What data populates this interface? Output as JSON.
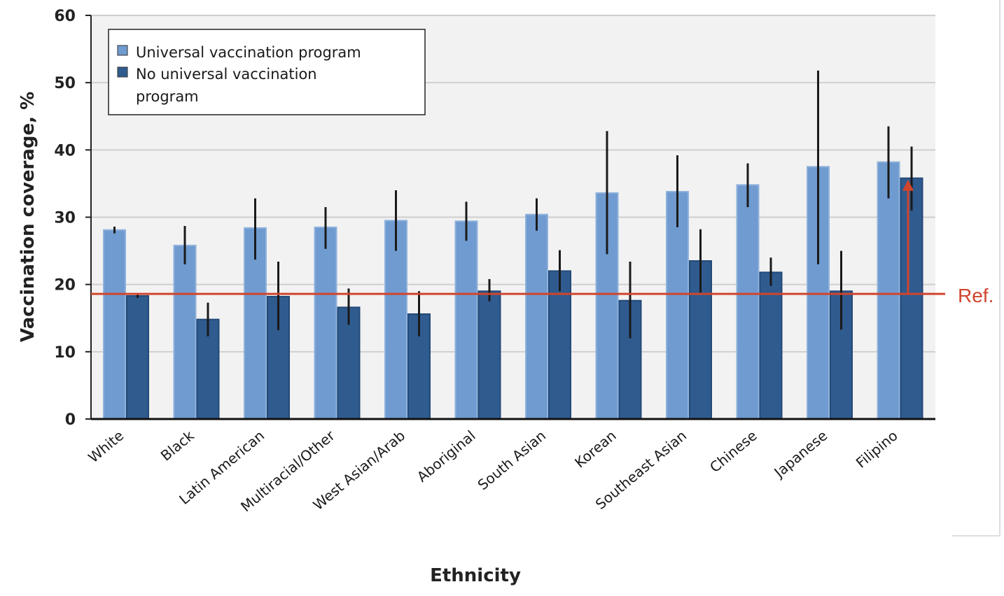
{
  "colors": {
    "universal": "#6f9bd0",
    "no_universal": "#2f5b8f",
    "error_bar": "#1a1a1a",
    "reference": "#d0452d",
    "plot_background": "#f2f2f2"
  },
  "chart_data": {
    "type": "bar",
    "xlabel": "Ethnicity",
    "ylabel": "Vaccination coverage, %",
    "ylim": [
      0,
      60
    ],
    "yticks": [
      "0",
      "10",
      "20",
      "30",
      "40",
      "50",
      "60"
    ],
    "grid": true,
    "legend_position": "top-left",
    "categories": [
      "White",
      "Black",
      "Latin American",
      "Multiracial/Other",
      "West Asian/Arab",
      "Aboriginal",
      "South Asian",
      "Korean",
      "Southeast Asian",
      "Chinese",
      "Japanese",
      "Filipino"
    ],
    "series": [
      {
        "name": "Universal vaccination program",
        "values": [
          28.1,
          25.8,
          28.4,
          28.5,
          29.5,
          29.4,
          30.4,
          33.6,
          33.8,
          34.8,
          37.5,
          38.2
        ],
        "ci_low": [
          27.6,
          23.0,
          23.7,
          25.3,
          25.0,
          26.5,
          28.0,
          24.5,
          28.5,
          31.5,
          23.0,
          32.8
        ],
        "ci_high": [
          28.6,
          28.7,
          32.8,
          31.5,
          34.0,
          32.3,
          32.8,
          42.8,
          39.2,
          38.0,
          51.8,
          43.5
        ]
      },
      {
        "name": "No universal vaccination\nprogram",
        "values": [
          18.3,
          14.8,
          18.2,
          16.6,
          15.6,
          19.0,
          22.0,
          17.6,
          23.5,
          21.8,
          19.0,
          35.8
        ],
        "ci_low": [
          18.0,
          12.3,
          13.2,
          14.0,
          12.3,
          17.5,
          19.0,
          12.0,
          18.8,
          19.8,
          13.3,
          31.0
        ],
        "ci_high": [
          18.6,
          17.3,
          23.4,
          19.4,
          19.0,
          20.8,
          25.1,
          23.4,
          28.2,
          24.0,
          25.0,
          40.5
        ]
      }
    ],
    "reference_line": {
      "label": "Ref.",
      "value": 18.6
    }
  }
}
